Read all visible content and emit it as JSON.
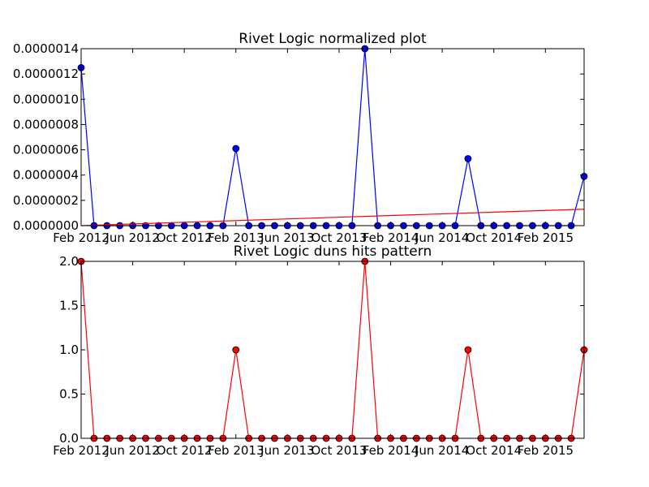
{
  "chart_data": [
    {
      "type": "line",
      "title": "Rivet Logic normalized plot",
      "xlabel": "",
      "ylabel": "",
      "x": [
        "2012-02",
        "2012-03",
        "2012-04",
        "2012-05",
        "2012-06",
        "2012-07",
        "2012-08",
        "2012-09",
        "2012-10",
        "2012-11",
        "2012-12",
        "2013-01",
        "2013-02",
        "2013-03",
        "2013-04",
        "2013-05",
        "2013-06",
        "2013-07",
        "2013-08",
        "2013-09",
        "2013-10",
        "2013-11",
        "2013-12",
        "2014-01",
        "2014-02",
        "2014-03",
        "2014-04",
        "2014-05",
        "2014-06",
        "2014-07",
        "2014-08",
        "2014-09",
        "2014-10",
        "2014-11",
        "2014-12",
        "2015-01",
        "2015-02",
        "2015-03",
        "2015-04",
        "2015-05"
      ],
      "xlim": [
        "2012-02",
        "2015-05"
      ],
      "ylim": [
        0,
        1.4e-06
      ],
      "y_ticks": [
        "0.0000000",
        "0.0000002",
        "0.0000004",
        "0.0000006",
        "0.0000008",
        "0.0000010",
        "0.0000012",
        "0.0000014"
      ],
      "x_ticks": [
        {
          "x": "2012-02",
          "label": "Feb 2012"
        },
        {
          "x": "2012-06",
          "label": "Jun 2012"
        },
        {
          "x": "2012-10",
          "label": "Oct 2012"
        },
        {
          "x": "2013-02",
          "label": "Feb 2013"
        },
        {
          "x": "2013-06",
          "label": "Jun 2013"
        },
        {
          "x": "2013-10",
          "label": "Oct 2013"
        },
        {
          "x": "2014-02",
          "label": "Feb 2014"
        },
        {
          "x": "2014-06",
          "label": "Jun 2014"
        },
        {
          "x": "2014-10",
          "label": "Oct 2014"
        },
        {
          "x": "2015-02",
          "label": "Feb 2015"
        }
      ],
      "grid": false,
      "series": [
        {
          "color": "#0000ff",
          "marker": "circle",
          "values": [
            1.25e-06,
            0,
            0,
            0,
            0,
            0,
            0,
            0,
            0,
            0,
            0,
            0,
            6.1e-07,
            0,
            0,
            0,
            0,
            0,
            0,
            0,
            0,
            0,
            1.4e-06,
            0,
            0,
            0,
            0,
            0,
            0,
            0,
            5.3e-07,
            0,
            0,
            0,
            0,
            0,
            0,
            0,
            0,
            3.9e-07
          ]
        }
      ],
      "trendline": {
        "color": "#ff0000",
        "start": 0.0,
        "end": 1.3e-07
      }
    },
    {
      "type": "line",
      "title": "Rivet Logic duns hits pattern",
      "xlabel": "",
      "ylabel": "",
      "x": [
        "2012-02",
        "2012-03",
        "2012-04",
        "2012-05",
        "2012-06",
        "2012-07",
        "2012-08",
        "2012-09",
        "2012-10",
        "2012-11",
        "2012-12",
        "2013-01",
        "2013-02",
        "2013-03",
        "2013-04",
        "2013-05",
        "2013-06",
        "2013-07",
        "2013-08",
        "2013-09",
        "2013-10",
        "2013-11",
        "2013-12",
        "2014-01",
        "2014-02",
        "2014-03",
        "2014-04",
        "2014-05",
        "2014-06",
        "2014-07",
        "2014-08",
        "2014-09",
        "2014-10",
        "2014-11",
        "2014-12",
        "2015-01",
        "2015-02",
        "2015-03",
        "2015-04",
        "2015-05"
      ],
      "xlim": [
        "2012-02",
        "2015-05"
      ],
      "ylim": [
        0,
        2
      ],
      "y_ticks": [
        "0.0",
        "0.5",
        "1.0",
        "1.5",
        "2.0"
      ],
      "x_ticks": [
        {
          "x": "2012-02",
          "label": "Feb 2012"
        },
        {
          "x": "2012-06",
          "label": "Jun 2012"
        },
        {
          "x": "2012-10",
          "label": "Oct 2012"
        },
        {
          "x": "2013-02",
          "label": "Feb 2013"
        },
        {
          "x": "2013-06",
          "label": "Jun 2013"
        },
        {
          "x": "2013-10",
          "label": "Oct 2013"
        },
        {
          "x": "2014-02",
          "label": "Feb 2014"
        },
        {
          "x": "2014-06",
          "label": "Jun 2014"
        },
        {
          "x": "2014-10",
          "label": "Oct 2014"
        },
        {
          "x": "2015-02",
          "label": "Feb 2015"
        }
      ],
      "grid": false,
      "series": [
        {
          "color": "#ff0000",
          "marker": "circle",
          "values": [
            2,
            0,
            0,
            0,
            0,
            0,
            0,
            0,
            0,
            0,
            0,
            0,
            1,
            0,
            0,
            0,
            0,
            0,
            0,
            0,
            0,
            0,
            2,
            0,
            0,
            0,
            0,
            0,
            0,
            0,
            1,
            0,
            0,
            0,
            0,
            0,
            0,
            0,
            0,
            1
          ]
        }
      ]
    }
  ]
}
